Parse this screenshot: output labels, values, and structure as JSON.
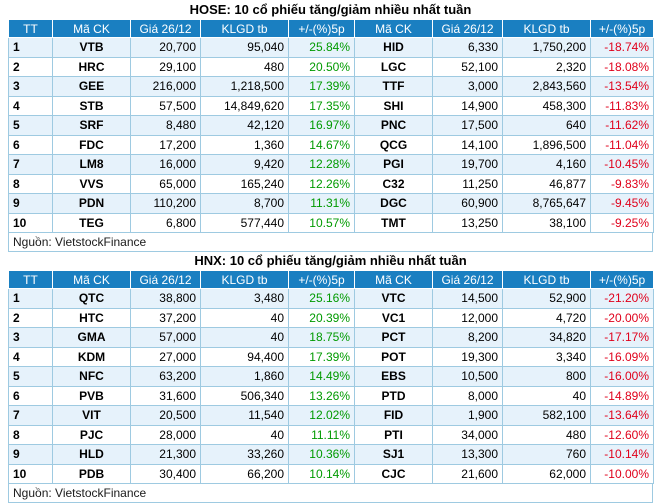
{
  "hose": {
    "title": "HOSE: 10 cổ phiếu tăng/giảm nhiều nhất tuần",
    "headers": [
      "TT",
      "Mã CK",
      "Giá 26/12",
      "KLGD tb",
      "+/-(%)5p",
      "Mã CK",
      "Giá 26/12",
      "KLGD tb",
      "+/-(%)5p"
    ],
    "rows": [
      [
        "1",
        "VTB",
        "20,700",
        "95,040",
        "25.84%",
        "HID",
        "6,330",
        "1,750,200",
        "-18.74%"
      ],
      [
        "2",
        "HRC",
        "29,100",
        "480",
        "20.50%",
        "LGC",
        "52,100",
        "2,320",
        "-18.08%"
      ],
      [
        "3",
        "GEE",
        "216,000",
        "1,218,500",
        "17.39%",
        "TTF",
        "3,000",
        "2,843,560",
        "-13.54%"
      ],
      [
        "4",
        "STB",
        "57,500",
        "14,849,620",
        "17.35%",
        "SHI",
        "14,900",
        "458,300",
        "-11.83%"
      ],
      [
        "5",
        "SRF",
        "8,480",
        "42,120",
        "16.97%",
        "PNC",
        "17,500",
        "640",
        "-11.62%"
      ],
      [
        "6",
        "FDC",
        "17,200",
        "1,360",
        "14.67%",
        "QCG",
        "14,100",
        "1,896,500",
        "-11.04%"
      ],
      [
        "7",
        "LM8",
        "16,000",
        "9,420",
        "12.28%",
        "PGI",
        "19,700",
        "4,160",
        "-10.45%"
      ],
      [
        "8",
        "VVS",
        "65,000",
        "165,240",
        "12.26%",
        "C32",
        "11,250",
        "46,877",
        "-9.83%"
      ],
      [
        "9",
        "PDN",
        "110,200",
        "8,700",
        "11.31%",
        "DGC",
        "60,900",
        "8,765,647",
        "-9.45%"
      ],
      [
        "10",
        "TEG",
        "6,800",
        "577,440",
        "10.57%",
        "TMT",
        "13,250",
        "38,100",
        "-9.25%"
      ]
    ],
    "source": "Nguồn: VietstockFinance"
  },
  "hnx": {
    "title": "HNX: 10 cổ phiếu tăng/giảm nhiều nhất tuần",
    "headers": [
      "TT",
      "Mã CK",
      "Giá 26/12",
      "KLGD tb",
      "+/-(%)5p",
      "Mã CK",
      "Giá 26/12",
      "KLGD tb",
      "+/-(%)5p"
    ],
    "rows": [
      [
        "1",
        "QTC",
        "38,800",
        "3,480",
        "25.16%",
        "VTC",
        "14,500",
        "52,900",
        "-21.20%"
      ],
      [
        "2",
        "HTC",
        "37,200",
        "40",
        "20.39%",
        "VC1",
        "12,000",
        "4,720",
        "-20.00%"
      ],
      [
        "3",
        "GMA",
        "57,000",
        "40",
        "18.75%",
        "PCT",
        "8,200",
        "34,820",
        "-17.17%"
      ],
      [
        "4",
        "KDM",
        "27,000",
        "94,400",
        "17.39%",
        "POT",
        "19,300",
        "3,340",
        "-16.09%"
      ],
      [
        "5",
        "NFC",
        "63,200",
        "1,860",
        "14.49%",
        "EBS",
        "10,500",
        "800",
        "-16.00%"
      ],
      [
        "6",
        "PVB",
        "31,600",
        "506,340",
        "13.26%",
        "PTD",
        "8,000",
        "40",
        "-14.89%"
      ],
      [
        "7",
        "VIT",
        "20,500",
        "11,540",
        "12.02%",
        "FID",
        "1,900",
        "582,100",
        "-13.64%"
      ],
      [
        "8",
        "PJC",
        "28,000",
        "40",
        "11.11%",
        "PTI",
        "34,000",
        "480",
        "-12.60%"
      ],
      [
        "9",
        "HLD",
        "21,300",
        "33,260",
        "10.36%",
        "SJ1",
        "13,300",
        "760",
        "-10.14%"
      ],
      [
        "10",
        "PDB",
        "30,400",
        "66,200",
        "10.14%",
        "CJC",
        "21,600",
        "62,000",
        "-10.00%"
      ]
    ],
    "source": "Nguồn: VietstockFinance"
  },
  "colors": {
    "header_bg": "#1a7fc1",
    "up": "#009a00",
    "down": "#e0001b",
    "row_alt": "#e6f2fb"
  }
}
